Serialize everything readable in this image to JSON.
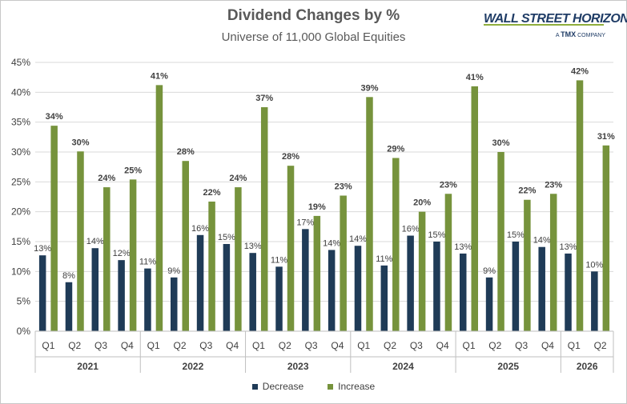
{
  "logo": {
    "main": "WALL STREET HORIZON",
    "sub_prefix": "A",
    "sub_brand": "TMX",
    "sub_suffix": "COMPANY"
  },
  "colors": {
    "decrease": "#1f3b57",
    "increase": "#76933c",
    "grid": "#d9d9d9",
    "axis_text": "#404040"
  },
  "chart_data": {
    "type": "bar",
    "title": "Dividend Changes by %",
    "subtitle": "Universe of 11,000 Global Equities",
    "xlabel": "",
    "ylabel": "",
    "ylim": [
      0,
      45
    ],
    "yticks": [
      "0%",
      "5%",
      "10%",
      "15%",
      "20%",
      "25%",
      "30%",
      "35%",
      "40%",
      "45%"
    ],
    "grid": true,
    "legend_position": "bottom",
    "categories": [
      "Q1",
      "Q2",
      "Q3",
      "Q4",
      "Q1",
      "Q2",
      "Q3",
      "Q4",
      "Q1",
      "Q2",
      "Q3",
      "Q4",
      "Q1",
      "Q2",
      "Q3",
      "Q4",
      "Q1",
      "Q2",
      "Q3",
      "Q4",
      "Q1",
      "Q2"
    ],
    "groups": [
      {
        "label": "2021",
        "count": 4
      },
      {
        "label": "2022",
        "count": 4
      },
      {
        "label": "2023",
        "count": 4
      },
      {
        "label": "2024",
        "count": 4
      },
      {
        "label": "2025",
        "count": 4
      },
      {
        "label": "2026",
        "count": 2
      }
    ],
    "series": [
      {
        "name": "Decrease",
        "values": [
          12.7,
          8.2,
          13.9,
          11.9,
          10.5,
          9.0,
          16.1,
          14.6,
          13.1,
          10.8,
          17.1,
          13.6,
          14.3,
          11.0,
          16.0,
          15.0,
          13.0,
          9.0,
          15.0,
          14.1,
          13.0,
          10.0
        ],
        "labels": [
          "13%",
          "8%",
          "14%",
          "12%",
          "11%",
          "9%",
          "16%",
          "15%",
          "13%",
          "11%",
          "17%",
          "14%",
          "14%",
          "11%",
          "16%",
          "15%",
          "13%",
          "9%",
          "15%",
          "14%",
          "13%",
          "10%"
        ]
      },
      {
        "name": "Increase",
        "values": [
          34.4,
          30.1,
          24.1,
          25.4,
          41.2,
          28.5,
          21.7,
          24.1,
          37.5,
          27.7,
          19.3,
          22.7,
          39.2,
          29.0,
          20.0,
          23.0,
          41.0,
          30.0,
          22.0,
          23.0,
          42.0,
          31.1
        ],
        "labels": [
          "34%",
          "30%",
          "24%",
          "25%",
          "41%",
          "28%",
          "22%",
          "24%",
          "37%",
          "28%",
          "19%",
          "23%",
          "39%",
          "29%",
          "20%",
          "23%",
          "41%",
          "30%",
          "22%",
          "23%",
          "42%",
          "31%"
        ]
      }
    ]
  }
}
